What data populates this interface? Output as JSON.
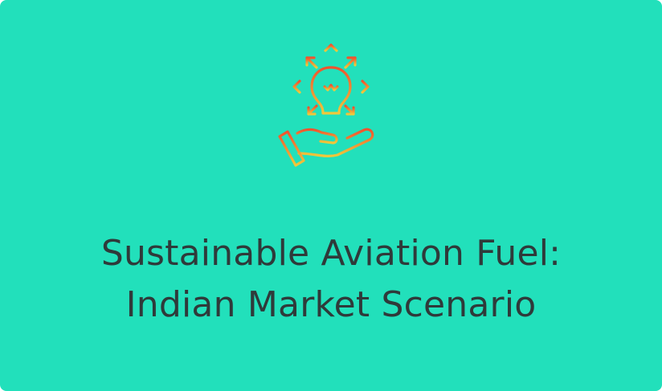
{
  "colors": {
    "background": "#22e0bb",
    "title_text": "#2f3a3a",
    "icon_gradient_top": "#f0522e",
    "icon_gradient_bottom": "#f0c93a"
  },
  "hero": {
    "icon": "idea-lightbulb-in-hand-icon",
    "title_line_1": "Sustainable Aviation Fuel:",
    "title_line_2": "Indian Market Scenario"
  }
}
